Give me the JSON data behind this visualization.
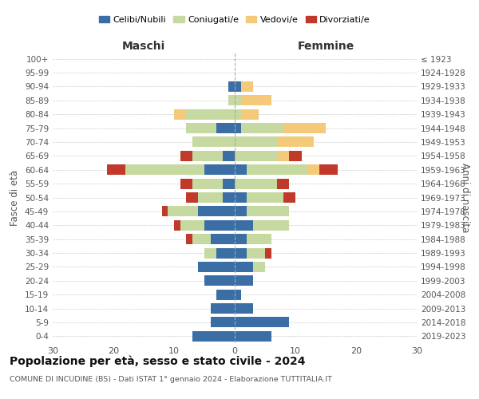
{
  "age_groups": [
    "100+",
    "95-99",
    "90-94",
    "85-89",
    "80-84",
    "75-79",
    "70-74",
    "65-69",
    "60-64",
    "55-59",
    "50-54",
    "45-49",
    "40-44",
    "35-39",
    "30-34",
    "25-29",
    "20-24",
    "15-19",
    "10-14",
    "5-9",
    "0-4"
  ],
  "birth_years": [
    "≤ 1923",
    "1924-1928",
    "1929-1933",
    "1934-1938",
    "1939-1943",
    "1944-1948",
    "1949-1953",
    "1954-1958",
    "1959-1963",
    "1964-1968",
    "1969-1973",
    "1974-1978",
    "1979-1983",
    "1984-1988",
    "1989-1993",
    "1994-1998",
    "1999-2003",
    "2004-2008",
    "2009-2013",
    "2014-2018",
    "2019-2023"
  ],
  "maschi": {
    "celibi": [
      0,
      0,
      1,
      0,
      0,
      3,
      0,
      2,
      5,
      2,
      2,
      6,
      5,
      4,
      3,
      6,
      5,
      3,
      4,
      4,
      7
    ],
    "coniugati": [
      0,
      0,
      0,
      1,
      8,
      5,
      7,
      5,
      13,
      5,
      4,
      5,
      4,
      3,
      2,
      0,
      0,
      0,
      0,
      0,
      0
    ],
    "vedovi": [
      0,
      0,
      0,
      0,
      2,
      0,
      0,
      0,
      0,
      0,
      0,
      0,
      0,
      0,
      0,
      0,
      0,
      0,
      0,
      0,
      0
    ],
    "divorziati": [
      0,
      0,
      0,
      0,
      0,
      0,
      0,
      2,
      3,
      2,
      2,
      1,
      1,
      1,
      0,
      0,
      0,
      0,
      0,
      0,
      0
    ]
  },
  "femmine": {
    "nubili": [
      0,
      0,
      1,
      0,
      0,
      1,
      0,
      0,
      2,
      0,
      2,
      2,
      3,
      2,
      2,
      3,
      3,
      1,
      3,
      9,
      6
    ],
    "coniugate": [
      0,
      0,
      0,
      1,
      1,
      7,
      7,
      7,
      10,
      7,
      6,
      7,
      6,
      4,
      3,
      2,
      0,
      0,
      0,
      0,
      0
    ],
    "vedove": [
      0,
      0,
      2,
      5,
      3,
      7,
      6,
      2,
      2,
      0,
      0,
      0,
      0,
      0,
      0,
      0,
      0,
      0,
      0,
      0,
      0
    ],
    "divorziate": [
      0,
      0,
      0,
      0,
      0,
      0,
      0,
      2,
      3,
      2,
      2,
      0,
      0,
      0,
      1,
      0,
      0,
      0,
      0,
      0,
      0
    ]
  },
  "colors": {
    "celibi": "#3a6ea5",
    "coniugati": "#c5d9a0",
    "vedovi": "#f5c97a",
    "divorziati": "#c0392b"
  },
  "xlim": 30,
  "title": "Popolazione per età, sesso e stato civile - 2024",
  "subtitle": "COMUNE DI INCUDINE (BS) - Dati ISTAT 1° gennaio 2024 - Elaborazione TUTTITALIA.IT",
  "xlabel_left": "Maschi",
  "xlabel_right": "Femmine",
  "ylabel_left": "Fasce di età",
  "ylabel_right": "Anni di nascita",
  "legend_labels": [
    "Celibi/Nubili",
    "Coniugati/e",
    "Vedovi/e",
    "Divorziati/e"
  ]
}
